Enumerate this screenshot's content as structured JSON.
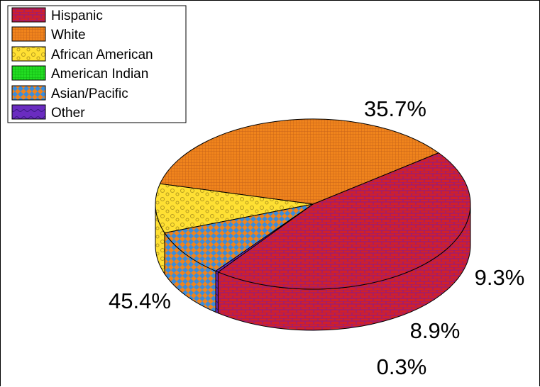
{
  "chart_data": {
    "type": "pie",
    "categories": [
      "Hispanic",
      "White",
      "African American",
      "American Indian",
      "Asian/Pacific",
      "Other"
    ],
    "values": [
      45.4,
      35.7,
      9.3,
      0.0,
      8.9,
      0.3
    ],
    "value_labels": [
      "45.4%",
      "35.7%",
      "9.3%",
      "",
      "8.9%",
      "0.3%"
    ],
    "colors": [
      "#d0202a",
      "#f0841c",
      "#ffe033",
      "#22dd22",
      "#3a8cdc",
      "#6a2cc0"
    ],
    "pattern_colors": [
      "#8a1c8c",
      "#c8641a",
      "#b59a20",
      "#10aa10",
      "#f0841c",
      "#3a1a80"
    ],
    "legend_position": "top-left",
    "style": "3d-tilted"
  }
}
